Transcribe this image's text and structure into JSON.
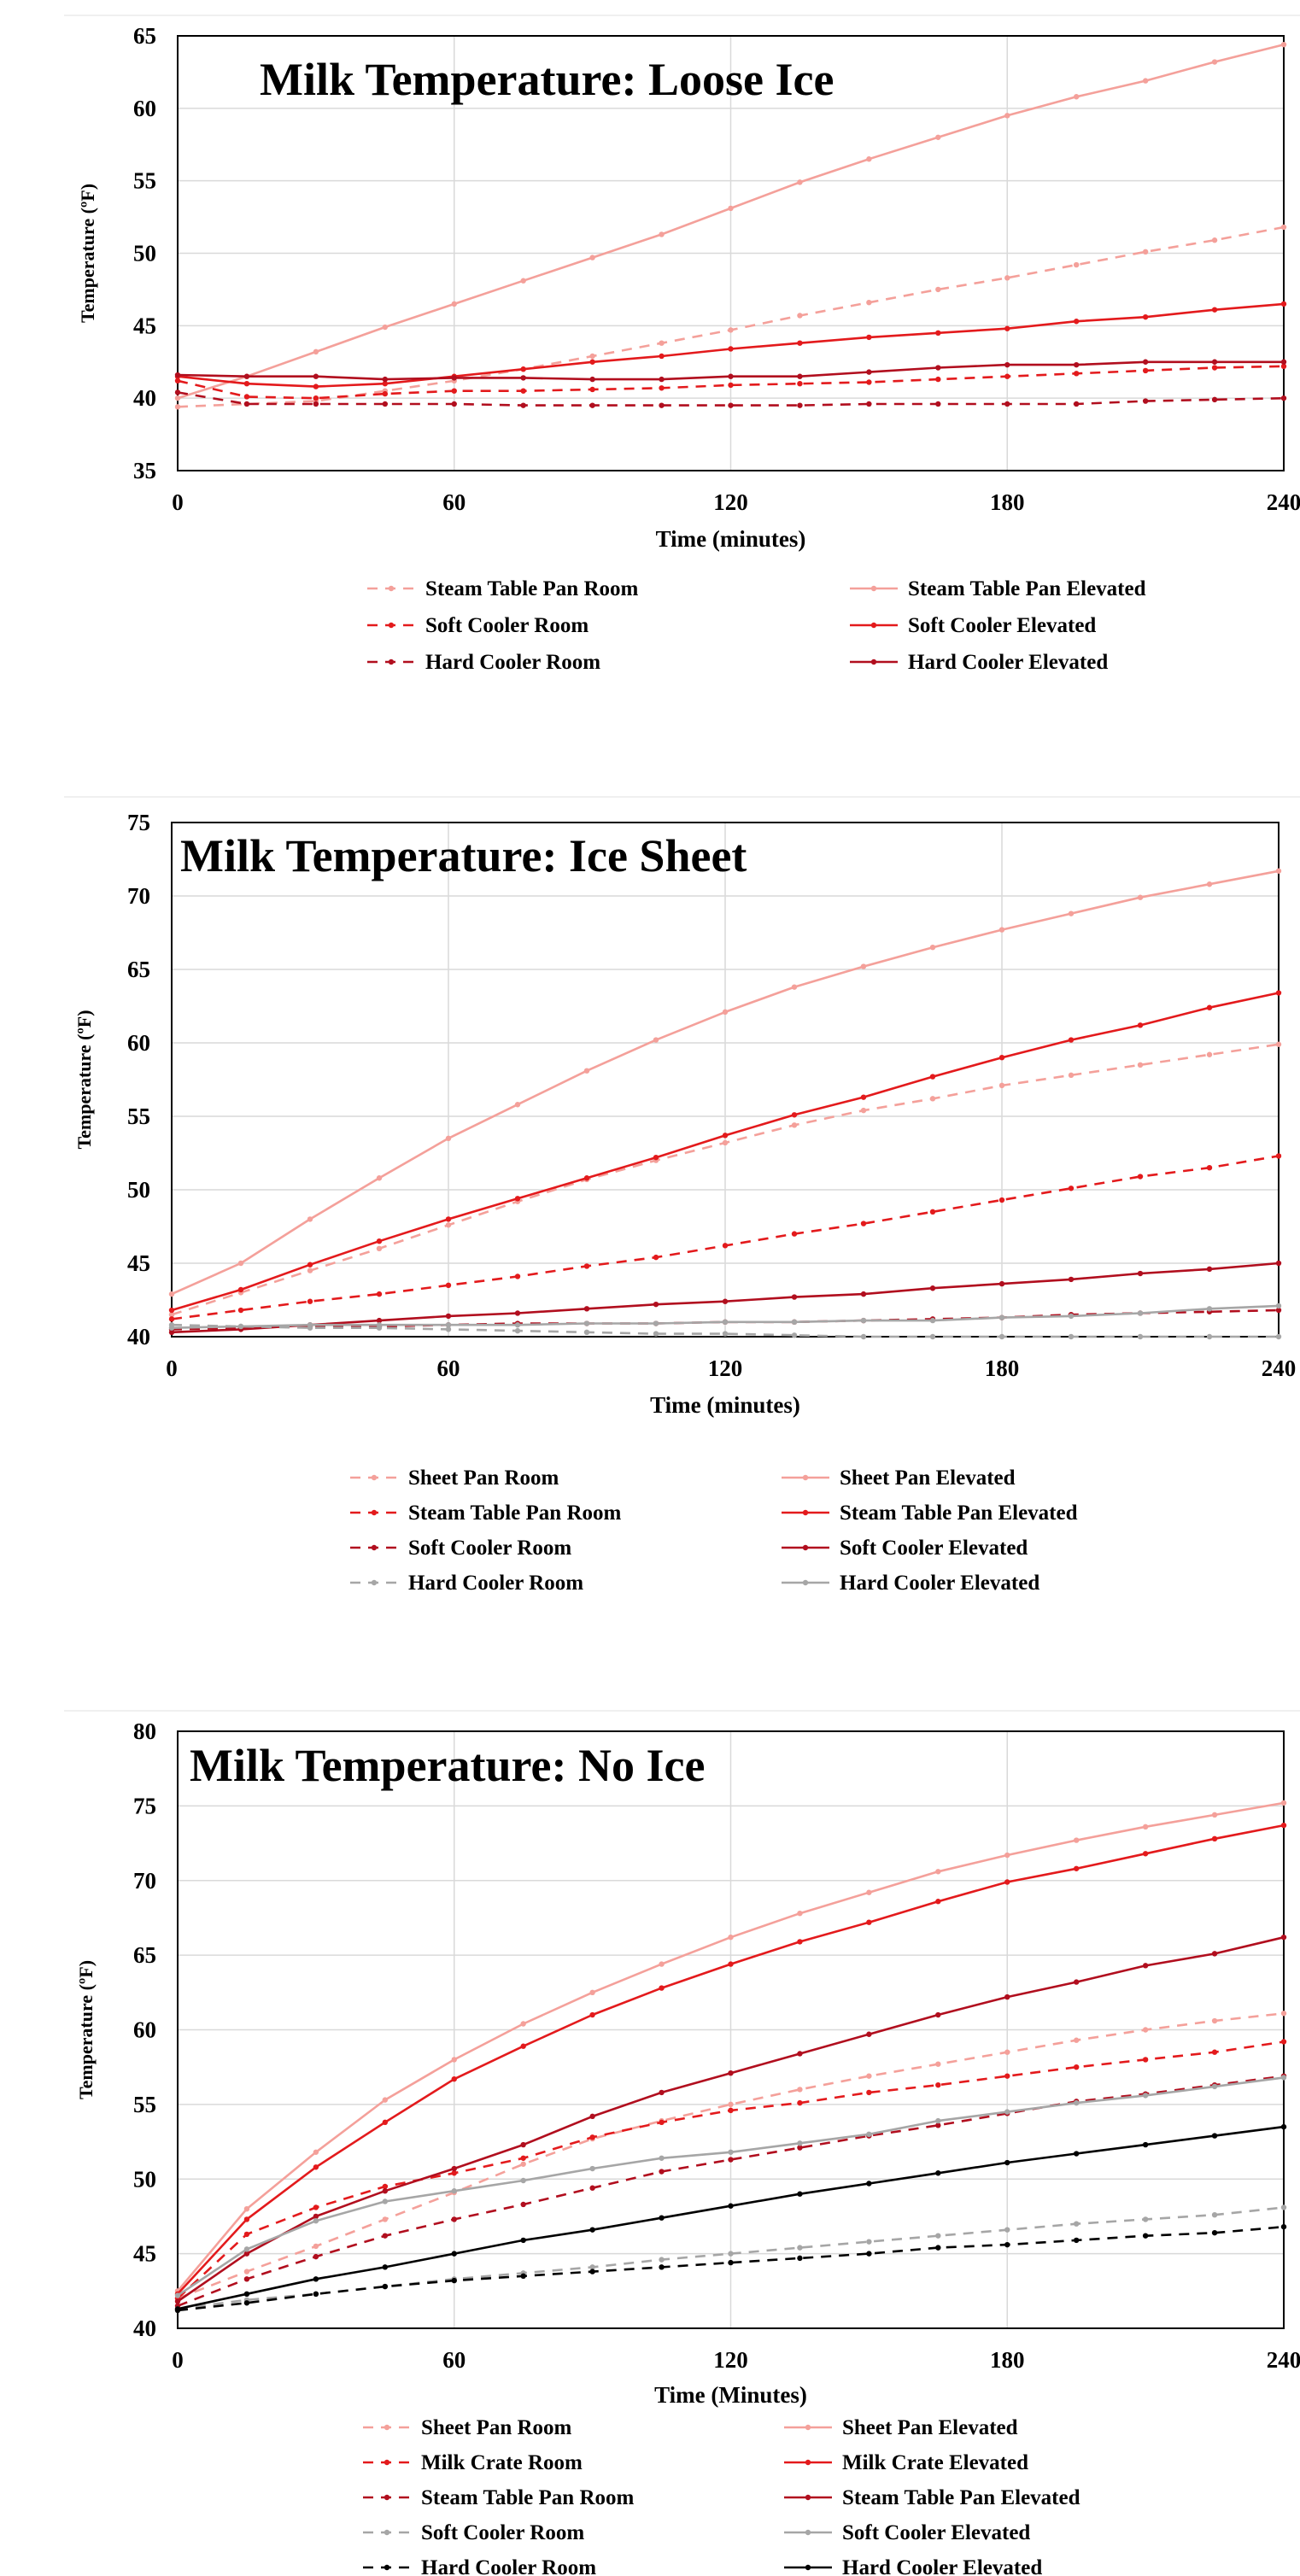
{
  "colors": {
    "pink": "#f4a09a",
    "red": "#e31a1c",
    "darkred": "#b10e1e",
    "gray": "#a6a6a6",
    "black": "#000000"
  },
  "chart_data": [
    {
      "type": "line",
      "title": "Milk Temperature: Loose Ice",
      "xlabel": "Time (minutes)",
      "ylabel": "Temperature (ºF)",
      "xlim": [
        0,
        240
      ],
      "ylim": [
        35,
        65
      ],
      "xticks": [
        0,
        60,
        120,
        180,
        240
      ],
      "yticks": [
        35,
        40,
        45,
        50,
        55,
        60,
        65
      ],
      "grid": true,
      "legend_position": "bottom",
      "x": [
        0,
        15,
        30,
        45,
        60,
        75,
        90,
        105,
        120,
        135,
        150,
        165,
        180,
        195,
        210,
        225,
        240
      ],
      "series": [
        {
          "name": "Steam Table Pan Room",
          "color": "pink",
          "dash": true,
          "values": [
            39.4,
            39.6,
            39.8,
            40.5,
            41.2,
            42.0,
            42.9,
            43.8,
            44.7,
            45.7,
            46.6,
            47.5,
            48.3,
            49.2,
            50.1,
            50.9,
            51.8
          ]
        },
        {
          "name": "Steam Table Pan Elevated",
          "color": "pink",
          "dash": false,
          "values": [
            40.0,
            41.5,
            43.2,
            44.9,
            46.5,
            48.1,
            49.7,
            51.3,
            53.1,
            54.9,
            56.5,
            58.0,
            59.5,
            60.8,
            61.9,
            63.2,
            64.4
          ]
        },
        {
          "name": "Soft Cooler Room",
          "color": "red",
          "dash": true,
          "values": [
            41.2,
            40.1,
            40.0,
            40.3,
            40.5,
            40.5,
            40.6,
            40.7,
            40.9,
            41.0,
            41.1,
            41.3,
            41.5,
            41.7,
            41.9,
            42.1,
            42.2
          ]
        },
        {
          "name": "Soft Cooler Elevated",
          "color": "red",
          "dash": false,
          "values": [
            41.5,
            41.0,
            40.8,
            41.0,
            41.5,
            42.0,
            42.5,
            42.9,
            43.4,
            43.8,
            44.2,
            44.5,
            44.8,
            45.3,
            45.6,
            46.1,
            46.5
          ]
        },
        {
          "name": "Hard Cooler Room",
          "color": "darkred",
          "dash": true,
          "values": [
            40.4,
            39.6,
            39.6,
            39.6,
            39.6,
            39.5,
            39.5,
            39.5,
            39.5,
            39.5,
            39.6,
            39.6,
            39.6,
            39.6,
            39.8,
            39.9,
            40.0
          ]
        },
        {
          "name": "Hard Cooler Elevated",
          "color": "darkred",
          "dash": false,
          "values": [
            41.6,
            41.5,
            41.5,
            41.3,
            41.4,
            41.4,
            41.3,
            41.3,
            41.5,
            41.5,
            41.8,
            42.1,
            42.3,
            42.3,
            42.5,
            42.5,
            42.5
          ]
        }
      ]
    },
    {
      "type": "line",
      "title": "Milk Temperature: Ice Sheet",
      "xlabel": "Time (minutes)",
      "ylabel": "Temperature (ºF)",
      "xlim": [
        0,
        240
      ],
      "ylim": [
        40,
        75
      ],
      "xticks": [
        0,
        60,
        120,
        180,
        240
      ],
      "yticks": [
        40,
        45,
        50,
        55,
        60,
        65,
        70,
        75
      ],
      "grid": true,
      "legend_position": "bottom",
      "x": [
        0,
        15,
        30,
        45,
        60,
        75,
        90,
        105,
        120,
        135,
        150,
        165,
        180,
        195,
        210,
        225,
        240
      ],
      "series": [
        {
          "name": "Sheet Pan Room",
          "color": "pink",
          "dash": true,
          "values": [
            41.5,
            43.0,
            44.5,
            46.0,
            47.6,
            49.2,
            50.7,
            52.0,
            53.2,
            54.4,
            55.4,
            56.2,
            57.1,
            57.8,
            58.5,
            59.2,
            59.9
          ]
        },
        {
          "name": "Sheet Pan Elevated",
          "color": "pink",
          "dash": false,
          "values": [
            42.9,
            45.0,
            48.0,
            50.8,
            53.5,
            55.8,
            58.1,
            60.2,
            62.1,
            63.8,
            65.2,
            66.5,
            67.7,
            68.8,
            69.9,
            70.8,
            71.7
          ]
        },
        {
          "name": "Steam Table Pan Room",
          "color": "red",
          "dash": true,
          "values": [
            41.2,
            41.8,
            42.4,
            42.9,
            43.5,
            44.1,
            44.8,
            45.4,
            46.2,
            47.0,
            47.7,
            48.5,
            49.3,
            50.1,
            50.9,
            51.5,
            52.3
          ]
        },
        {
          "name": "Steam Table Pan Elevated",
          "color": "red",
          "dash": false,
          "values": [
            41.8,
            43.2,
            44.9,
            46.5,
            48.0,
            49.4,
            50.8,
            52.2,
            53.7,
            55.1,
            56.3,
            57.7,
            59.0,
            60.2,
            61.2,
            62.4,
            63.4
          ]
        },
        {
          "name": "Soft Cooler Room",
          "color": "darkred",
          "dash": true,
          "values": [
            40.5,
            40.6,
            40.7,
            40.7,
            40.8,
            40.9,
            40.9,
            40.9,
            41.0,
            41.0,
            41.1,
            41.2,
            41.3,
            41.5,
            41.6,
            41.7,
            41.8
          ]
        },
        {
          "name": "Soft Cooler Elevated",
          "color": "darkred",
          "dash": false,
          "values": [
            40.3,
            40.5,
            40.8,
            41.1,
            41.4,
            41.6,
            41.9,
            42.2,
            42.4,
            42.7,
            42.9,
            43.3,
            43.6,
            43.9,
            44.3,
            44.6,
            45.0
          ]
        },
        {
          "name": "Hard Cooler Room",
          "color": "gray",
          "dash": true,
          "values": [
            40.8,
            40.7,
            40.6,
            40.6,
            40.5,
            40.4,
            40.3,
            40.2,
            40.2,
            40.1,
            40.0,
            40.0,
            40.0,
            40.0,
            40.0,
            40.0,
            40.0
          ]
        },
        {
          "name": "Hard Cooler Elevated",
          "color": "gray",
          "dash": false,
          "values": [
            40.6,
            40.7,
            40.8,
            40.8,
            40.8,
            40.8,
            40.9,
            40.9,
            41.0,
            41.0,
            41.1,
            41.1,
            41.3,
            41.4,
            41.6,
            41.9,
            42.1
          ]
        }
      ]
    },
    {
      "type": "line",
      "title": "Milk Temperature: No Ice",
      "xlabel": "Time (Minutes)",
      "ylabel": "Temperature (ºF)",
      "xlim": [
        0,
        240
      ],
      "ylim": [
        40,
        80
      ],
      "xticks": [
        0,
        60,
        120,
        180,
        240
      ],
      "yticks": [
        40,
        45,
        50,
        55,
        60,
        65,
        70,
        75,
        80
      ],
      "grid": true,
      "legend_position": "bottom",
      "x": [
        0,
        15,
        30,
        45,
        60,
        75,
        90,
        105,
        120,
        135,
        150,
        165,
        180,
        195,
        210,
        225,
        240
      ],
      "series": [
        {
          "name": "Sheet Pan Room",
          "color": "pink",
          "dash": true,
          "values": [
            42.0,
            43.8,
            45.5,
            47.3,
            49.1,
            51.0,
            52.7,
            53.9,
            55.0,
            56.0,
            56.9,
            57.7,
            58.5,
            59.3,
            60.0,
            60.6,
            61.1
          ]
        },
        {
          "name": "Sheet Pan Elevated",
          "color": "pink",
          "dash": false,
          "values": [
            42.5,
            48.0,
            51.8,
            55.3,
            58.0,
            60.4,
            62.5,
            64.4,
            66.2,
            67.8,
            69.2,
            70.6,
            71.7,
            72.7,
            73.6,
            74.4,
            75.2
          ]
        },
        {
          "name": "Milk Crate Room",
          "color": "red",
          "dash": true,
          "values": [
            42.0,
            46.3,
            48.1,
            49.5,
            50.4,
            51.4,
            52.8,
            53.8,
            54.6,
            55.1,
            55.8,
            56.3,
            56.9,
            57.5,
            58.0,
            58.5,
            59.2
          ]
        },
        {
          "name": "Milk Crate Elevated",
          "color": "red",
          "dash": false,
          "values": [
            42.3,
            47.3,
            50.8,
            53.8,
            56.7,
            58.9,
            61.0,
            62.8,
            64.4,
            65.9,
            67.2,
            68.6,
            69.9,
            70.8,
            71.8,
            72.8,
            73.7
          ]
        },
        {
          "name": "Steam Table Pan Room",
          "color": "darkred",
          "dash": true,
          "values": [
            41.5,
            43.3,
            44.8,
            46.2,
            47.3,
            48.3,
            49.4,
            50.5,
            51.3,
            52.1,
            52.9,
            53.6,
            54.4,
            55.2,
            55.7,
            56.3,
            56.9
          ]
        },
        {
          "name": "Steam Table Pan Elevated",
          "color": "darkred",
          "dash": false,
          "values": [
            41.8,
            45.0,
            47.5,
            49.2,
            50.7,
            52.3,
            54.2,
            55.8,
            57.1,
            58.4,
            59.7,
            61.0,
            62.2,
            63.2,
            64.3,
            65.1,
            66.2
          ]
        },
        {
          "name": "Soft Cooler Room",
          "color": "gray",
          "dash": true,
          "values": [
            41.3,
            41.9,
            42.3,
            42.8,
            43.3,
            43.7,
            44.1,
            44.6,
            45.0,
            45.4,
            45.8,
            46.2,
            46.6,
            47.0,
            47.3,
            47.6,
            48.1
          ]
        },
        {
          "name": "Soft Cooler Elevated",
          "color": "gray",
          "dash": false,
          "values": [
            42.2,
            45.3,
            47.2,
            48.5,
            49.2,
            49.9,
            50.7,
            51.4,
            51.8,
            52.4,
            53.0,
            53.9,
            54.5,
            55.1,
            55.6,
            56.2,
            56.8
          ]
        },
        {
          "name": "Hard Cooler Room",
          "color": "black",
          "dash": true,
          "values": [
            41.2,
            41.7,
            42.3,
            42.8,
            43.2,
            43.5,
            43.8,
            44.1,
            44.4,
            44.7,
            45.0,
            45.4,
            45.6,
            45.9,
            46.2,
            46.4,
            46.8
          ]
        },
        {
          "name": "Hard Cooler Elevated",
          "color": "black",
          "dash": false,
          "values": [
            41.3,
            42.3,
            43.3,
            44.1,
            45.0,
            45.9,
            46.6,
            47.4,
            48.2,
            49.0,
            49.7,
            50.4,
            51.1,
            51.7,
            52.3,
            52.9,
            53.5
          ]
        }
      ]
    }
  ]
}
